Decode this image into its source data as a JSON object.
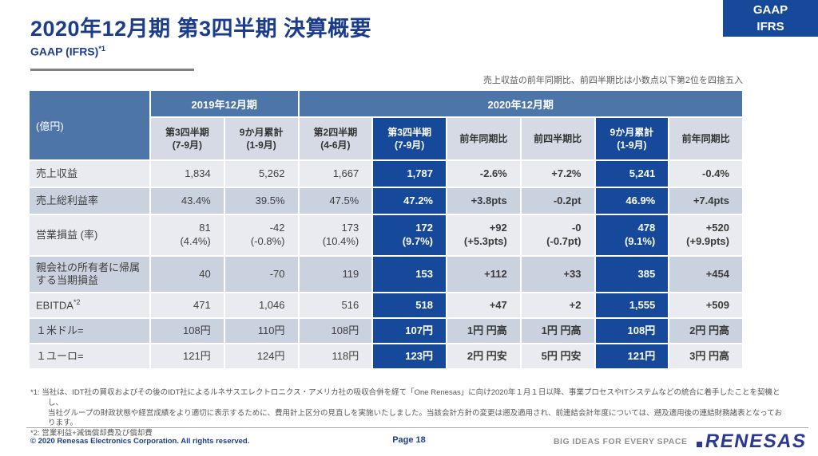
{
  "slide": {
    "title": "2020年12月期 第3四半期 決算概要",
    "subtitle": "GAAP (IFRS)",
    "subtitle_superscript": "*1",
    "corner_badge": {
      "line1": "GAAP",
      "line2": "IFRS"
    },
    "table_note": "売上収益の前年同期比、前四半期比は小数点以下第2位を四捨五入"
  },
  "table": {
    "unit_label": "(億円)",
    "col_groups": [
      {
        "label": "2019年12月期",
        "span": 2
      },
      {
        "label": "2020年12月期",
        "span": 6
      }
    ],
    "columns": [
      {
        "label": "第3四半期",
        "sub": "(7-9月)",
        "highlight": false,
        "comparison": false
      },
      {
        "label": "9か月累計",
        "sub": "(1-9月)",
        "highlight": false,
        "comparison": false
      },
      {
        "label": "第2四半期",
        "sub": "(4-6月)",
        "highlight": false,
        "comparison": false
      },
      {
        "label": "第3四半期",
        "sub": "(7-9月)",
        "highlight": true,
        "comparison": false
      },
      {
        "label": "前年同期比",
        "sub": "",
        "highlight": false,
        "comparison": true
      },
      {
        "label": "前四半期比",
        "sub": "",
        "highlight": false,
        "comparison": true
      },
      {
        "label": "9か月累計",
        "sub": "(1-9月)",
        "highlight": true,
        "comparison": false
      },
      {
        "label": "前年同期比",
        "sub": "",
        "highlight": false,
        "comparison": true
      }
    ],
    "rows": [
      {
        "label": "売上収益",
        "values": [
          "1,834",
          "5,262",
          "1,667",
          "1,787",
          "-2.6%",
          "+7.2%",
          "5,241",
          "-0.4%"
        ]
      },
      {
        "label": "売上総利益率",
        "values": [
          "43.4%",
          "39.5%",
          "47.5%",
          "47.2%",
          "+3.8pts",
          "-0.2pt",
          "46.9%",
          "+7.4pts"
        ]
      },
      {
        "label": "営業損益 (率)",
        "values": [
          {
            "main": "81",
            "sub": "(4.4%)"
          },
          {
            "main": "-42",
            "sub": "(-0.8%)"
          },
          {
            "main": "173",
            "sub": "(10.4%)"
          },
          {
            "main": "172",
            "sub": "(9.7%)"
          },
          {
            "main": "+92",
            "sub": "(+5.3pts)"
          },
          {
            "main": "-0",
            "sub": "(-0.7pt)"
          },
          {
            "main": "478",
            "sub": "(9.1%)"
          },
          {
            "main": "+520",
            "sub": "(+9.9pts)"
          }
        ]
      },
      {
        "label": "親会社の所有者に帰属する当期損益",
        "values": [
          "40",
          "-70",
          "119",
          "153",
          "+112",
          "+33",
          "385",
          "+454"
        ]
      },
      {
        "label": "EBITDA",
        "label_sup": "*2",
        "values": [
          "471",
          "1,046",
          "516",
          "518",
          "+47",
          "+2",
          "1,555",
          "+509"
        ]
      },
      {
        "label": "１米ドル=",
        "values": [
          "108円",
          "110円",
          "108円",
          "107円",
          "1円 円高",
          "1円 円高",
          "108円",
          "2円 円高"
        ]
      },
      {
        "label": "１ユーロ=",
        "values": [
          "121円",
          "124円",
          "118円",
          "123円",
          "2円 円安",
          "5円 円安",
          "121円",
          "3円 円高"
        ]
      }
    ]
  },
  "footnotes": [
    {
      "marker": "*1:",
      "lines": [
        "当社は、IDT社の買収およびその後のIDT社によるルネサスエレクトロニクス・アメリカ社の吸収合併を経て「One Renesas」に向け2020年１月１日以降、事業プロセスやITシステムなどの統合に着手したことを契機とし、",
        "当社グループの財政状態や経営成績をより適切に表示するために、費用計上区分の見直しを実施いたしました。当該会計方針の変更は遡及適用され、前連結会計年度については、遡及適用後の連結財務諸表となっております。"
      ]
    },
    {
      "marker": "*2:",
      "lines": [
        "営業利益+減価償却費及び償却費"
      ]
    }
  ],
  "footer": {
    "copyright": "© 2020 Renesas Electronics Corporation. All rights reserved.",
    "page": "Page 18",
    "tagline": "BIG IDEAS FOR EVERY SPACE",
    "logo_text": "RENESAS"
  },
  "colors": {
    "accent": "#17499B",
    "header_blue": "#4D75A8",
    "subheader": "#D5DAE4",
    "light_row": "#E9EBF1",
    "dark_row": "#CBD2DF",
    "title_blue": "#1C3C8C",
    "logo_blue": "#2B3A90"
  }
}
